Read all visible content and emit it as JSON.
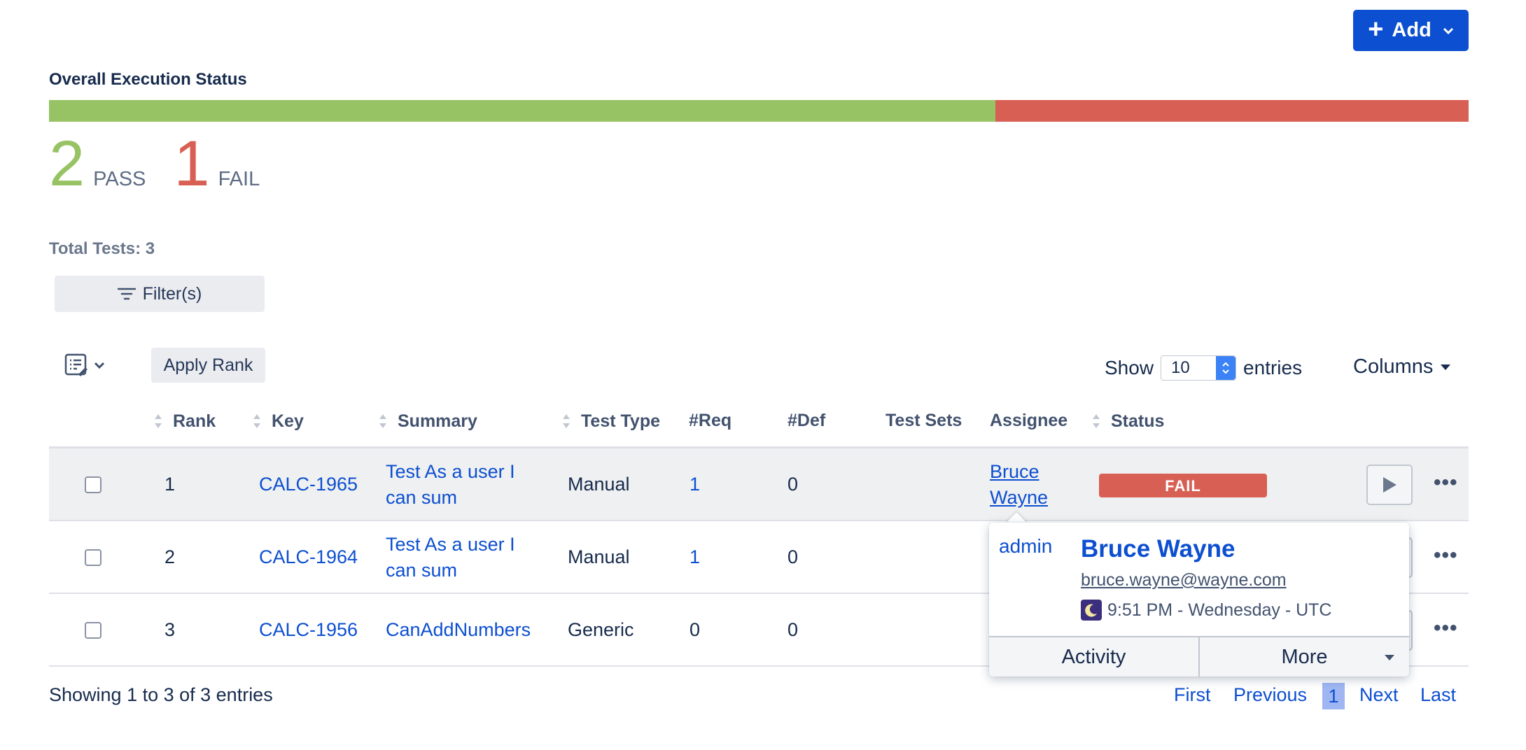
{
  "toolbar": {
    "add_label": "Add"
  },
  "execution": {
    "title": "Overall Execution Status",
    "pass_fraction": 0.6667,
    "fail_fraction": 0.3333,
    "pass_count": "2",
    "pass_label": "PASS",
    "fail_count": "1",
    "fail_label": "FAIL",
    "pass_color": "#97c364",
    "fail_color": "#d85f53"
  },
  "total_tests": "Total Tests: 3",
  "filter_label": "Filter(s)",
  "apply_rank_label": "Apply Rank",
  "show": {
    "prefix": "Show",
    "value": "10",
    "suffix": "entries"
  },
  "columns_label": "Columns",
  "table": {
    "headers": [
      "Rank",
      "Key",
      "Summary",
      "Test Type",
      "#Req",
      "#Def",
      "Test Sets",
      "Assignee",
      "Status"
    ],
    "rows": [
      {
        "rank": "1",
        "key": "CALC-1965",
        "summary_1": "Test As a user I",
        "summary_2": "can sum",
        "type": "Manual",
        "req": "1",
        "def": "0",
        "assignee_1": "Bruce",
        "assignee_2": "Wayne",
        "status": "FAIL"
      },
      {
        "rank": "2",
        "key": "CALC-1964",
        "summary_1": "Test As a user I",
        "summary_2": "can sum",
        "type": "Manual",
        "req": "1",
        "def": "0"
      },
      {
        "rank": "3",
        "key": "CALC-1956",
        "summary_1": "CanAddNumbers",
        "type": "Generic",
        "req": "0",
        "def": "0"
      }
    ]
  },
  "footer": {
    "showing": "Showing 1 to 3 of 3 entries",
    "first": "First",
    "previous": "Previous",
    "current": "1",
    "next": "Next",
    "last": "Last"
  },
  "user_card": {
    "avatar_alt": "admin",
    "name": "Bruce Wayne",
    "email": "bruce.wayne@wayne.com",
    "time": "9:51 PM - Wednesday - UTC",
    "activity_label": "Activity",
    "more_label": "More"
  }
}
